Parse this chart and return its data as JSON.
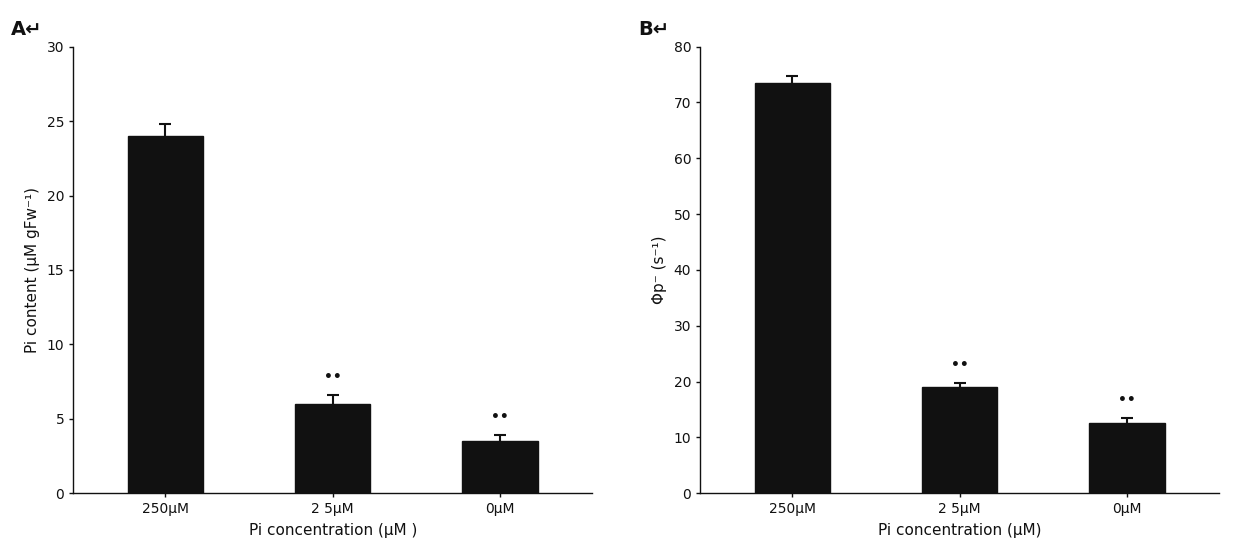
{
  "panel_A": {
    "label": "A↵",
    "categories": [
      "250μM",
      "2 5μM",
      "0μM"
    ],
    "values": [
      24.0,
      6.0,
      3.5
    ],
    "errors": [
      0.8,
      0.6,
      0.4
    ],
    "ylabel": "Pi content (μM gFw⁻¹)",
    "xlabel": "Pi concentration (μM )",
    "ylim": [
      0,
      30
    ],
    "yticks": [
      0,
      5,
      10,
      15,
      20,
      25,
      30
    ],
    "significance": [
      false,
      true,
      true
    ],
    "bar_color": "#111111",
    "error_color": "#111111"
  },
  "panel_B": {
    "label": "B↵",
    "categories": [
      "250μM",
      "2 5μM",
      "0μM"
    ],
    "values": [
      73.5,
      19.0,
      12.5
    ],
    "errors": [
      1.2,
      0.8,
      1.0
    ],
    "ylabel": "Φp⁻ (s⁻¹)",
    "xlabel": "Pi concentration (μM)",
    "ylim": [
      0,
      80
    ],
    "yticks": [
      0,
      10,
      20,
      30,
      40,
      50,
      60,
      70,
      80
    ],
    "significance": [
      false,
      true,
      true
    ],
    "bar_color": "#111111",
    "error_color": "#111111"
  },
  "background_color": "#ffffff",
  "fig_width": 12.4,
  "fig_height": 5.59
}
